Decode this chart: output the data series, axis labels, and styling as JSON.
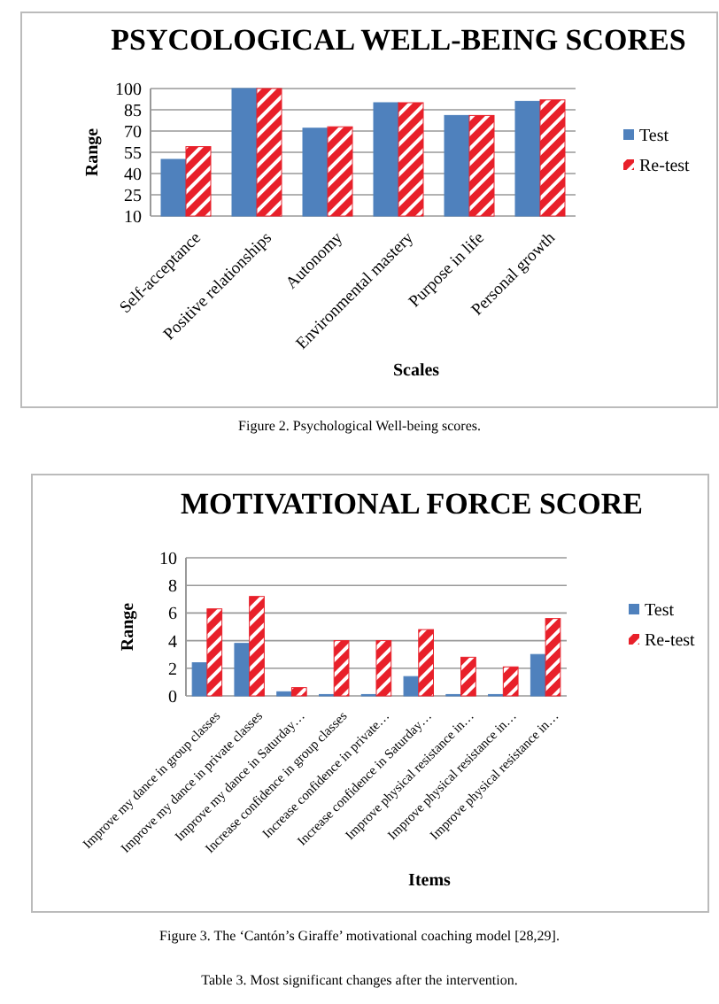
{
  "chart_data": [
    {
      "type": "bar",
      "title": "PSYCOLOGICAL WELL-BEING SCORES",
      "xlabel": "Scales",
      "ylabel": "Range",
      "categories": [
        "Self-acceptance",
        "Positive relationships",
        "Autonomy",
        "Environmental mastery",
        "Purpose in life",
        "Personal growth"
      ],
      "series": [
        {
          "name": "Test",
          "color": "#4f81bd",
          "values": [
            50,
            100,
            72,
            90,
            81,
            91
          ]
        },
        {
          "name": "Re-test",
          "color": "#e8202a",
          "values": [
            59,
            100,
            73,
            90,
            81,
            92
          ]
        }
      ],
      "ylim": [
        10,
        100
      ],
      "yticks": [
        10,
        25,
        40,
        55,
        70,
        85,
        100
      ],
      "grid": "y",
      "legend": "right",
      "annotations": [
        "Figure 2. Psychological Well-being scores."
      ]
    },
    {
      "type": "bar",
      "title": "MOTIVATIONAL FORCE SCORE",
      "xlabel": "Items",
      "ylabel": "Range",
      "categories": [
        "Improve my dance in group classes",
        "Improve my dance in private classes",
        "Improve my dance in Saturday…",
        "Increase confidence in group classes",
        "Increase confidence in private…",
        "Increase confidence in Saturday…",
        "Improve physical resistance in…",
        "Improve physical resistance in…",
        "Improve physical resistance in…"
      ],
      "series": [
        {
          "name": "Test",
          "color": "#4f81bd",
          "values": [
            2.4,
            3.8,
            0.3,
            0.1,
            0.1,
            1.4,
            0.1,
            0.1,
            3.0
          ]
        },
        {
          "name": "Re-test",
          "color": "#e8202a",
          "values": [
            6.3,
            7.2,
            0.6,
            4.0,
            4.0,
            4.8,
            2.8,
            2.1,
            5.6
          ]
        }
      ],
      "ylim": [
        0,
        10
      ],
      "yticks": [
        0,
        2,
        4,
        6,
        8,
        10
      ],
      "grid": "y",
      "legend": "right",
      "annotations": [
        "Figure 3. The ‘Cantón’s Giraffe’ motivational coaching model [28,29].",
        "Table 3. Most significant changes after the intervention."
      ]
    }
  ]
}
